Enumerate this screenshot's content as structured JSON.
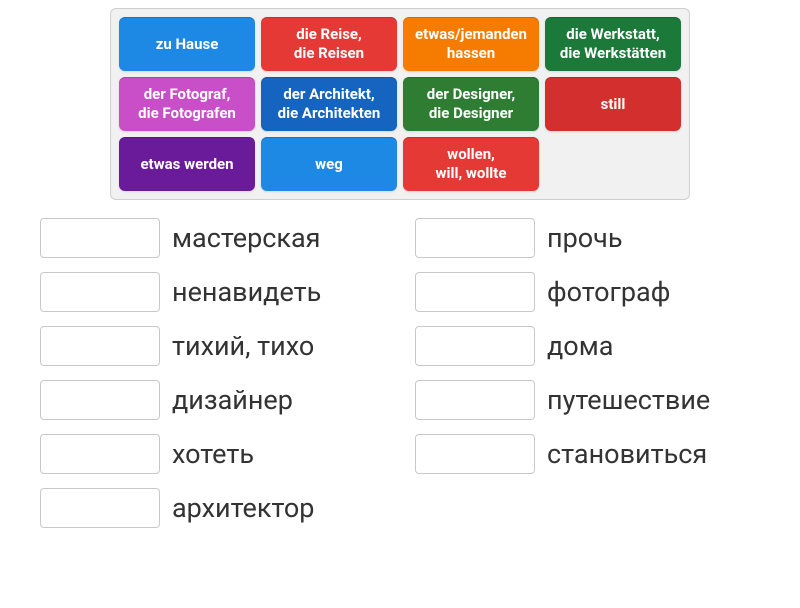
{
  "tiles": [
    {
      "label": "zu Hause",
      "color": "#1e88e5"
    },
    {
      "label": "die Reise,\ndie Reisen",
      "color": "#e53935"
    },
    {
      "label": "etwas/jemanden\nhassen",
      "color": "#f57c00"
    },
    {
      "label": "die Werkstatt,\ndie Werkstätten",
      "color": "#1b7a3a"
    },
    {
      "label": "der Fotograf,\ndie Fotografen",
      "color": "#c94fc9"
    },
    {
      "label": "der Architekt,\ndie Architekten",
      "color": "#1565c0"
    },
    {
      "label": "der Designer,\ndie Designer",
      "color": "#2e7d32"
    },
    {
      "label": "still",
      "color": "#d32f2f"
    },
    {
      "label": "etwas werden",
      "color": "#6a1b9a"
    },
    {
      "label": "weg",
      "color": "#1e88e5"
    },
    {
      "label": "wollen,\nwill, wollte",
      "color": "#e53935"
    }
  ],
  "tile_container": {
    "border_color": "#cfcfcf",
    "background": "#f1f1f1",
    "columns": 4
  },
  "answers_left": [
    "мастерская",
    "ненавидеть",
    "тихий, тихо",
    "дизайнер",
    "хотеть",
    "архитектор"
  ],
  "answers_right": [
    "прочь",
    "фотограф",
    "дома",
    "путешествие",
    "становиться"
  ],
  "dropbox": {
    "border_color": "#c8c8c8",
    "background": "#ffffff"
  },
  "text_color": "#333333",
  "background": "#ffffff"
}
